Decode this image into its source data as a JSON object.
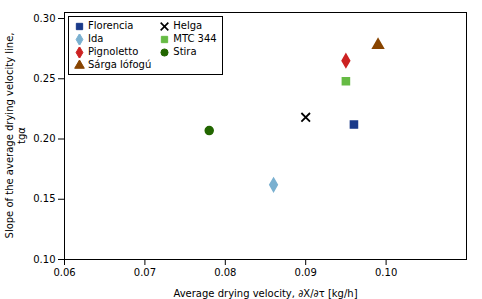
{
  "chart_data": {
    "type": "scatter",
    "xlabel": "Average drying velocity, ∂X/∂τ [kg/h]",
    "ylabel": "Slope of the average drying velocity line,\ntgα",
    "series": [
      {
        "name": "Florencia",
        "color": "#1a3a8a",
        "marker": "square",
        "x": [
          0.096
        ],
        "values": [
          0.212
        ]
      },
      {
        "name": "Helga",
        "color": "#000000",
        "marker": "x",
        "x": [
          0.09
        ],
        "values": [
          0.218
        ]
      },
      {
        "name": "Ida",
        "color": "#7ab0d0",
        "marker": "diamond",
        "x": [
          0.086
        ],
        "values": [
          0.162
        ]
      },
      {
        "name": "MTC 344",
        "color": "#66bb44",
        "marker": "square",
        "x": [
          0.095
        ],
        "values": [
          0.248
        ]
      },
      {
        "name": "Pignoletto",
        "color": "#cc2222",
        "marker": "diamond",
        "x": [
          0.095
        ],
        "values": [
          0.265
        ]
      },
      {
        "name": "Stira",
        "color": "#226600",
        "marker": "circle",
        "x": [
          0.078
        ],
        "values": [
          0.207
        ]
      },
      {
        "name": "Sárga lófogú",
        "color": "#884400",
        "marker": "triangle",
        "x": [
          0.099
        ],
        "values": [
          0.278
        ]
      }
    ],
    "xlim": [
      0.06,
      0.11
    ],
    "ylim": [
      0.1,
      0.305
    ],
    "xticks": [
      0.06,
      0.07,
      0.08,
      0.09,
      {
        "value": 0.1,
        "label": "0.10"
      }
    ],
    "yticks": [
      {
        "value": 0.1,
        "label": "0.10"
      },
      0.15,
      {
        "value": 0.2,
        "label": "0.20"
      },
      0.25,
      {
        "value": 0.3,
        "label": "0.30"
      }
    ],
    "legend": "upper left",
    "grid": false
  }
}
